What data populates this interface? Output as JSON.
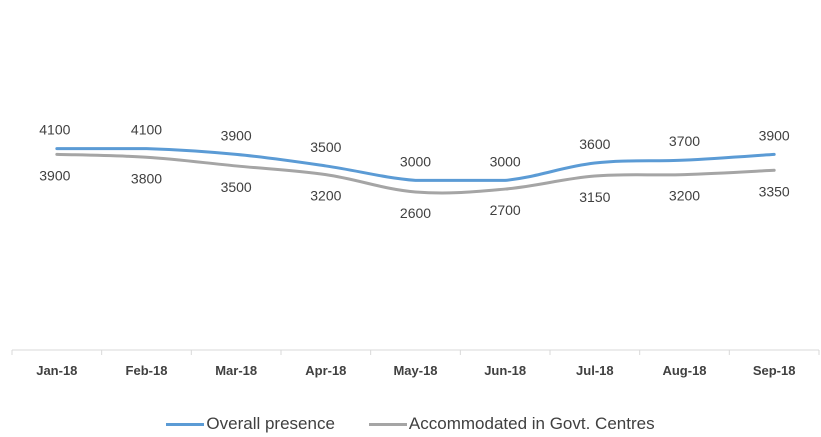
{
  "chart_data": {
    "type": "line",
    "categories": [
      "Jan-18",
      "Feb-18",
      "Mar-18",
      "Apr-18",
      "May-18",
      "Jun-18",
      "Jul-18",
      "Aug-18",
      "Sep-18"
    ],
    "series": [
      {
        "name": "Overall presence",
        "color": "#5b9bd5",
        "values": [
          4100,
          4100,
          3900,
          3500,
          3000,
          3000,
          3600,
          3700,
          3900
        ],
        "labels": [
          "4100",
          "4100",
          "3900",
          "3500",
          "3000",
          "3000",
          "3600",
          "3700",
          "3900"
        ]
      },
      {
        "name": "Accommodated in Govt. Centres",
        "color": "#a5a5a5",
        "values": [
          3900,
          3800,
          3500,
          3200,
          2600,
          2700,
          3150,
          3200,
          3350
        ],
        "labels": [
          "3900",
          "3800",
          "3500",
          "3200",
          "2600",
          "2700",
          "3150",
          "3200",
          "3350"
        ]
      }
    ],
    "title": "",
    "xlabel": "",
    "ylabel": "",
    "smooth": true,
    "grid": false,
    "legend_position": "bottom",
    "axis_color": "#d9d9d9"
  }
}
